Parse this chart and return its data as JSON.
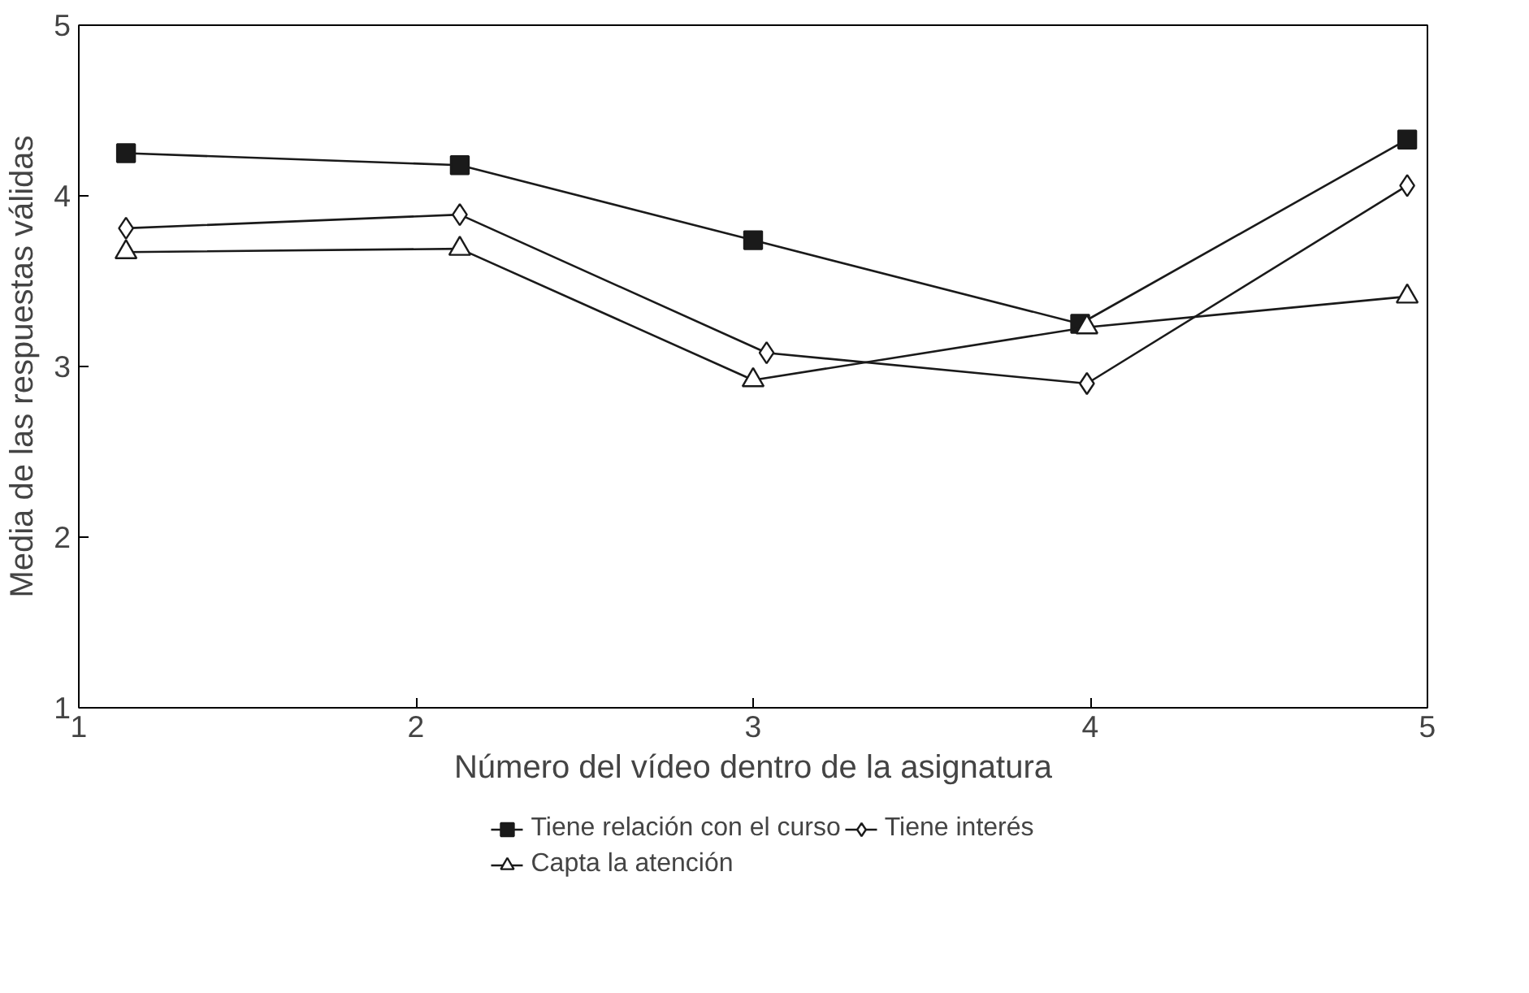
{
  "chart_data": {
    "type": "line",
    "xlabel": "Número del vídeo dentro de la asignatura",
    "ylabel": "Media de las respuestas válidas",
    "xlim": [
      1,
      5
    ],
    "ylim": [
      1,
      5
    ],
    "xticks": [
      1,
      2,
      3,
      4,
      5
    ],
    "yticks": [
      1,
      2,
      3,
      4,
      5
    ],
    "grid": false,
    "legend": "bottom",
    "line_style": "solid",
    "series": [
      {
        "name": "Tiene relación con el curso",
        "color": "#1a1a1a",
        "marker": "square",
        "x": [
          1.14,
          2.13,
          3.0,
          3.97,
          4.94
        ],
        "values": [
          4.25,
          4.18,
          3.74,
          3.25,
          4.33
        ]
      },
      {
        "name": "Tiene interés",
        "color": "#1a1a1a",
        "marker": "diamond",
        "x": [
          1.14,
          2.13,
          3.04,
          3.99,
          4.94
        ],
        "values": [
          3.81,
          3.89,
          3.08,
          2.9,
          4.06
        ]
      },
      {
        "name": "Capta la atención",
        "color": "#1a1a1a",
        "marker": "triangle",
        "x": [
          1.14,
          2.13,
          3.0,
          3.99,
          4.94
        ],
        "values": [
          3.67,
          3.69,
          2.92,
          3.23,
          3.41
        ]
      }
    ]
  }
}
